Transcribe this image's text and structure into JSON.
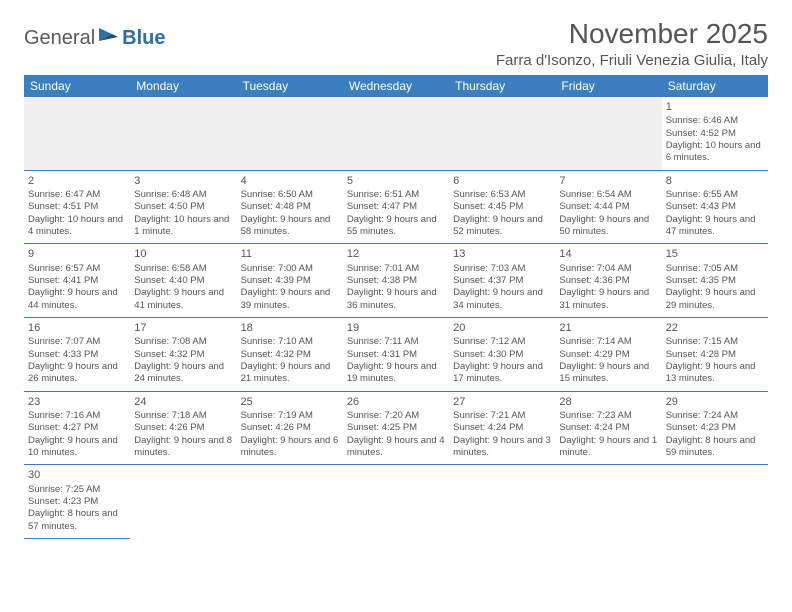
{
  "logo": {
    "text1": "General",
    "text2": "Blue"
  },
  "title": "November 2025",
  "location": "Farra d'Isonzo, Friuli Venezia Giulia, Italy",
  "colors": {
    "headerBg": "#3b7fbf",
    "headerText": "#ffffff",
    "bodyText": "#555555",
    "emptyBg": "#f0f0f0",
    "ruleColor": "#3b7fbf"
  },
  "dayNames": [
    "Sunday",
    "Monday",
    "Tuesday",
    "Wednesday",
    "Thursday",
    "Friday",
    "Saturday"
  ],
  "weeks": [
    [
      null,
      null,
      null,
      null,
      null,
      null,
      {
        "n": "1",
        "sr": "6:46 AM",
        "ss": "4:52 PM",
        "dl": "10 hours and 6 minutes."
      }
    ],
    [
      {
        "n": "2",
        "sr": "6:47 AM",
        "ss": "4:51 PM",
        "dl": "10 hours and 4 minutes."
      },
      {
        "n": "3",
        "sr": "6:48 AM",
        "ss": "4:50 PM",
        "dl": "10 hours and 1 minute."
      },
      {
        "n": "4",
        "sr": "6:50 AM",
        "ss": "4:48 PM",
        "dl": "9 hours and 58 minutes."
      },
      {
        "n": "5",
        "sr": "6:51 AM",
        "ss": "4:47 PM",
        "dl": "9 hours and 55 minutes."
      },
      {
        "n": "6",
        "sr": "6:53 AM",
        "ss": "4:45 PM",
        "dl": "9 hours and 52 minutes."
      },
      {
        "n": "7",
        "sr": "6:54 AM",
        "ss": "4:44 PM",
        "dl": "9 hours and 50 minutes."
      },
      {
        "n": "8",
        "sr": "6:55 AM",
        "ss": "4:43 PM",
        "dl": "9 hours and 47 minutes."
      }
    ],
    [
      {
        "n": "9",
        "sr": "6:57 AM",
        "ss": "4:41 PM",
        "dl": "9 hours and 44 minutes."
      },
      {
        "n": "10",
        "sr": "6:58 AM",
        "ss": "4:40 PM",
        "dl": "9 hours and 41 minutes."
      },
      {
        "n": "11",
        "sr": "7:00 AM",
        "ss": "4:39 PM",
        "dl": "9 hours and 39 minutes."
      },
      {
        "n": "12",
        "sr": "7:01 AM",
        "ss": "4:38 PM",
        "dl": "9 hours and 36 minutes."
      },
      {
        "n": "13",
        "sr": "7:03 AM",
        "ss": "4:37 PM",
        "dl": "9 hours and 34 minutes."
      },
      {
        "n": "14",
        "sr": "7:04 AM",
        "ss": "4:36 PM",
        "dl": "9 hours and 31 minutes."
      },
      {
        "n": "15",
        "sr": "7:05 AM",
        "ss": "4:35 PM",
        "dl": "9 hours and 29 minutes."
      }
    ],
    [
      {
        "n": "16",
        "sr": "7:07 AM",
        "ss": "4:33 PM",
        "dl": "9 hours and 26 minutes."
      },
      {
        "n": "17",
        "sr": "7:08 AM",
        "ss": "4:32 PM",
        "dl": "9 hours and 24 minutes."
      },
      {
        "n": "18",
        "sr": "7:10 AM",
        "ss": "4:32 PM",
        "dl": "9 hours and 21 minutes."
      },
      {
        "n": "19",
        "sr": "7:11 AM",
        "ss": "4:31 PM",
        "dl": "9 hours and 19 minutes."
      },
      {
        "n": "20",
        "sr": "7:12 AM",
        "ss": "4:30 PM",
        "dl": "9 hours and 17 minutes."
      },
      {
        "n": "21",
        "sr": "7:14 AM",
        "ss": "4:29 PM",
        "dl": "9 hours and 15 minutes."
      },
      {
        "n": "22",
        "sr": "7:15 AM",
        "ss": "4:28 PM",
        "dl": "9 hours and 13 minutes."
      }
    ],
    [
      {
        "n": "23",
        "sr": "7:16 AM",
        "ss": "4:27 PM",
        "dl": "9 hours and 10 minutes."
      },
      {
        "n": "24",
        "sr": "7:18 AM",
        "ss": "4:26 PM",
        "dl": "9 hours and 8 minutes."
      },
      {
        "n": "25",
        "sr": "7:19 AM",
        "ss": "4:26 PM",
        "dl": "9 hours and 6 minutes."
      },
      {
        "n": "26",
        "sr": "7:20 AM",
        "ss": "4:25 PM",
        "dl": "9 hours and 4 minutes."
      },
      {
        "n": "27",
        "sr": "7:21 AM",
        "ss": "4:24 PM",
        "dl": "9 hours and 3 minutes."
      },
      {
        "n": "28",
        "sr": "7:23 AM",
        "ss": "4:24 PM",
        "dl": "9 hours and 1 minute."
      },
      {
        "n": "29",
        "sr": "7:24 AM",
        "ss": "4:23 PM",
        "dl": "8 hours and 59 minutes."
      }
    ],
    [
      {
        "n": "30",
        "sr": "7:25 AM",
        "ss": "4:23 PM",
        "dl": "8 hours and 57 minutes."
      },
      null,
      null,
      null,
      null,
      null,
      null
    ]
  ],
  "labels": {
    "sunrise": "Sunrise: ",
    "sunset": "Sunset: ",
    "daylight": "Daylight: "
  }
}
